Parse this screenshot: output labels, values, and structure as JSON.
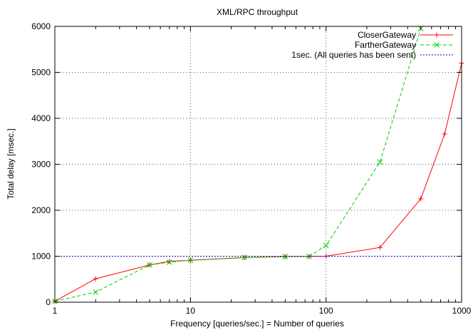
{
  "chart_data": {
    "type": "line",
    "title": "XML/RPC throughput",
    "xlabel": "Frequency [queries/sec.] = Number of queries",
    "ylabel": "Total delay [msec.]",
    "xscale": "log",
    "xlim": [
      1,
      1000
    ],
    "ylim": [
      0,
      6000
    ],
    "x_ticks": [
      1,
      10,
      100,
      1000
    ],
    "x_tick_labels": [
      "1",
      "10",
      "100",
      "1000"
    ],
    "y_ticks": [
      0,
      1000,
      2000,
      3000,
      4000,
      5000,
      6000
    ],
    "y_tick_labels": [
      "0",
      "1000",
      "2000",
      "3000",
      "4000",
      "5000",
      "6000"
    ],
    "grid": "major dotted (x at decades, y at 1000s)",
    "legend_position": "top-right",
    "series": [
      {
        "name": "CloserGateway",
        "color": "#ff0000",
        "style": "solid",
        "marker": "plus",
        "x": [
          1,
          2,
          5,
          7,
          10,
          25,
          50,
          75,
          100,
          250,
          500,
          750,
          1000
        ],
        "y": [
          20,
          510,
          810,
          890,
          910,
          970,
          990,
          995,
          1000,
          1190,
          2250,
          3660,
          5200
        ]
      },
      {
        "name": "FartherGateway",
        "color": "#00cc00",
        "style": "dashed",
        "marker": "cross",
        "x": [
          1,
          2,
          5,
          7,
          10,
          25,
          50,
          75,
          100,
          250,
          500
        ],
        "y": [
          20,
          220,
          810,
          870,
          915,
          975,
          990,
          995,
          1230,
          3050,
          5950
        ]
      },
      {
        "name": "1sec. (All queries has been sent)",
        "color": "#0000cc",
        "style": "dotted",
        "marker": "none",
        "x": [
          1,
          1000
        ],
        "y": [
          1000,
          1000
        ]
      }
    ]
  }
}
